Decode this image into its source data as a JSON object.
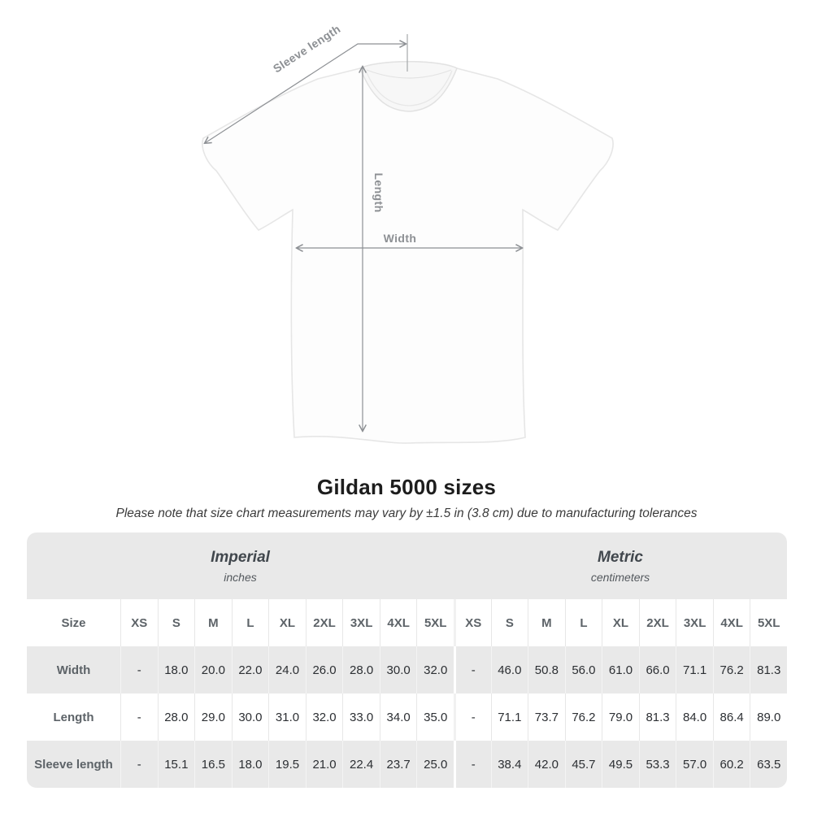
{
  "figure": {
    "labels": {
      "sleeve_length": "Sleeve length",
      "length": "Length",
      "width": "Width"
    }
  },
  "heading": {
    "title": "Gildan 5000 sizes",
    "subtitle": "Please note that size chart measurements may vary by ±1.5 in (3.8 cm) due to manufacturing tolerances"
  },
  "table": {
    "groups": [
      {
        "label": "Imperial",
        "sublabel": "inches"
      },
      {
        "label": "Metric",
        "sublabel": "centimeters"
      }
    ],
    "size_header": "Size",
    "sizes": [
      "XS",
      "S",
      "M",
      "L",
      "XL",
      "2XL",
      "3XL",
      "4XL",
      "5XL"
    ],
    "rows": [
      {
        "label": "Width",
        "imperial": [
          "-",
          "18.0",
          "20.0",
          "22.0",
          "24.0",
          "26.0",
          "28.0",
          "30.0",
          "32.0"
        ],
        "metric": [
          "-",
          "46.0",
          "50.8",
          "56.0",
          "61.0",
          "66.0",
          "71.1",
          "76.2",
          "81.3"
        ]
      },
      {
        "label": "Length",
        "imperial": [
          "-",
          "28.0",
          "29.0",
          "30.0",
          "31.0",
          "32.0",
          "33.0",
          "34.0",
          "35.0"
        ],
        "metric": [
          "-",
          "71.1",
          "73.7",
          "76.2",
          "79.0",
          "81.3",
          "84.0",
          "86.4",
          "89.0"
        ]
      },
      {
        "label": "Sleeve length",
        "imperial": [
          "-",
          "15.1",
          "16.5",
          "18.0",
          "19.5",
          "21.0",
          "22.4",
          "23.7",
          "25.0"
        ],
        "metric": [
          "-",
          "38.4",
          "42.0",
          "45.7",
          "49.5",
          "53.3",
          "57.0",
          "60.2",
          "63.5"
        ]
      }
    ]
  },
  "chart_data": {
    "type": "table",
    "title": "Gildan 5000 sizes",
    "note": "Please note that size chart measurements may vary by ±1.5 in (3.8 cm) due to manufacturing tolerances",
    "column_groups": [
      "Imperial (inches)",
      "Metric (centimeters)"
    ],
    "columns": [
      "XS",
      "S",
      "M",
      "L",
      "XL",
      "2XL",
      "3XL",
      "4XL",
      "5XL"
    ],
    "rows": [
      {
        "measure": "Width",
        "imperial_inches": [
          null,
          18.0,
          20.0,
          22.0,
          24.0,
          26.0,
          28.0,
          30.0,
          32.0
        ],
        "metric_cm": [
          null,
          46.0,
          50.8,
          56.0,
          61.0,
          66.0,
          71.1,
          76.2,
          81.3
        ]
      },
      {
        "measure": "Length",
        "imperial_inches": [
          null,
          28.0,
          29.0,
          30.0,
          31.0,
          32.0,
          33.0,
          34.0,
          35.0
        ],
        "metric_cm": [
          null,
          71.1,
          73.7,
          76.2,
          79.0,
          81.3,
          84.0,
          86.4,
          89.0
        ]
      },
      {
        "measure": "Sleeve length",
        "imperial_inches": [
          null,
          15.1,
          16.5,
          18.0,
          19.5,
          21.0,
          22.4,
          23.7,
          25.0
        ],
        "metric_cm": [
          null,
          38.4,
          42.0,
          45.7,
          49.5,
          53.3,
          57.0,
          60.2,
          63.5
        ]
      }
    ]
  },
  "colors": {
    "page_background": "#ffffff",
    "table_band": "#e9e9e9",
    "data_text": "#2c2f33",
    "header_text": "#5d6368",
    "arrow_gray": "#8d9094",
    "title_text": "#1d1d1d"
  }
}
